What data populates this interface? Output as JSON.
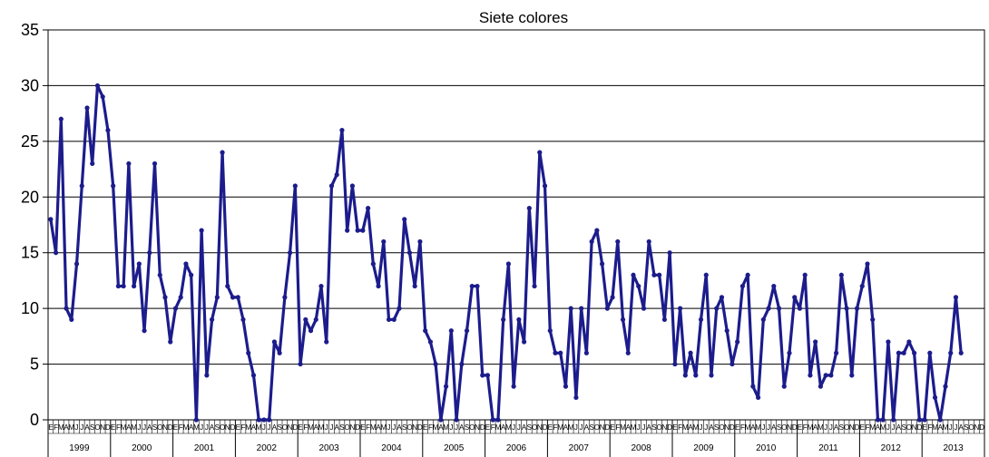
{
  "chart_data": {
    "type": "line",
    "title": "Siete colores",
    "xlabel": "",
    "ylabel": "",
    "ylim": [
      0,
      35
    ],
    "yticks": [
      0,
      5,
      10,
      15,
      20,
      25,
      30,
      35
    ],
    "grid": "horizontal",
    "legend": "none",
    "line_color": "#1c1c8c",
    "month_labels": [
      "E",
      "F",
      "M",
      "A",
      "M",
      "J",
      "J",
      "A",
      "S",
      "O",
      "N",
      "D"
    ],
    "years": [
      "1999",
      "2000",
      "2001",
      "2002",
      "2003",
      "2004",
      "2005",
      "2006",
      "2007",
      "2008",
      "2009",
      "2010",
      "2011",
      "2012",
      "2013"
    ],
    "series": [
      {
        "values": [
          18,
          15,
          27,
          10,
          9,
          14,
          21,
          28,
          23,
          30,
          29,
          26,
          21,
          12,
          12,
          23,
          12,
          14,
          8,
          15,
          23,
          13,
          11,
          7,
          10,
          11,
          14,
          13,
          0,
          17,
          4,
          9,
          11,
          24,
          12,
          11,
          11,
          9,
          6,
          4,
          0,
          0,
          0,
          7,
          6,
          11,
          15,
          21,
          5,
          9,
          8,
          9,
          12,
          7,
          21,
          22,
          26,
          17,
          21,
          17,
          17,
          19,
          14,
          12,
          16,
          9,
          9,
          10,
          18,
          15,
          12,
          16,
          8,
          7,
          5,
          0,
          3,
          8,
          0,
          5,
          8,
          12,
          12,
          4,
          4,
          0,
          0,
          9,
          14,
          3,
          9,
          7,
          19,
          12,
          24,
          21,
          8,
          6,
          6,
          3,
          10,
          2,
          10,
          6,
          16,
          17,
          14,
          10,
          11,
          16,
          9,
          6,
          13,
          12,
          10,
          16,
          13,
          13,
          9,
          15,
          5,
          10,
          4,
          6,
          4,
          9,
          13,
          4,
          10,
          11,
          8,
          5,
          7,
          12,
          13,
          3,
          2,
          9,
          10,
          12,
          10,
          3,
          6,
          11,
          10,
          13,
          4,
          7,
          3,
          4,
          4,
          6,
          13,
          10,
          4,
          10,
          12,
          14,
          9,
          0,
          0,
          7,
          0,
          6,
          6,
          7,
          6,
          0,
          0,
          6,
          2,
          0,
          3,
          6,
          11,
          6
        ]
      }
    ]
  }
}
